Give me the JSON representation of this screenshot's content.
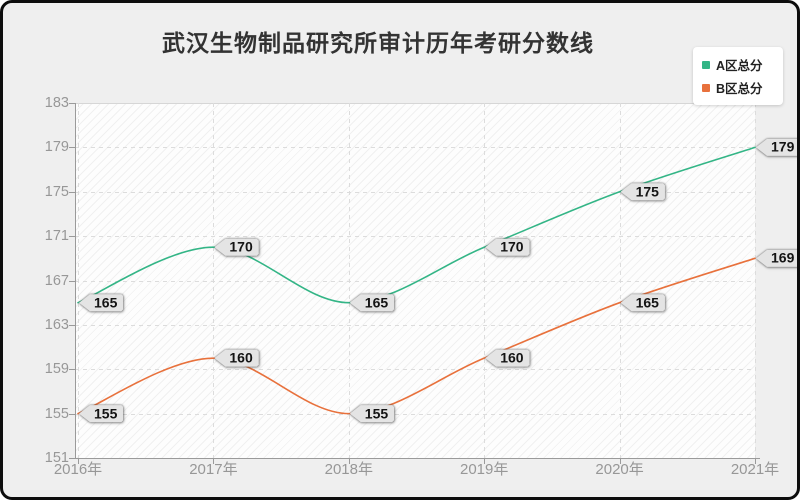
{
  "chart_data": {
    "type": "line",
    "title": "武汉生物制品研究所审计历年考研分数线",
    "x": [
      "2016年",
      "2017年",
      "2018年",
      "2019年",
      "2020年",
      "2021年"
    ],
    "series": [
      {
        "name": "A区总分",
        "color": "#33b586",
        "values": [
          165,
          170,
          165,
          170,
          175,
          179
        ]
      },
      {
        "name": "B区总分",
        "color": "#e8713c",
        "values": [
          155,
          160,
          155,
          160,
          165,
          169
        ]
      }
    ],
    "ylim": [
      151,
      183
    ],
    "yticks": [
      151,
      155,
      159,
      163,
      167,
      171,
      175,
      179,
      183
    ],
    "grid": true,
    "smooth": true,
    "labels_shown": true,
    "legend_position": "top-right",
    "axis_color": "#9a9a9a",
    "grid_color": "#dcdcdc",
    "tick_label_color": "#979797",
    "data_label_bg": "#e4e4e4"
  }
}
